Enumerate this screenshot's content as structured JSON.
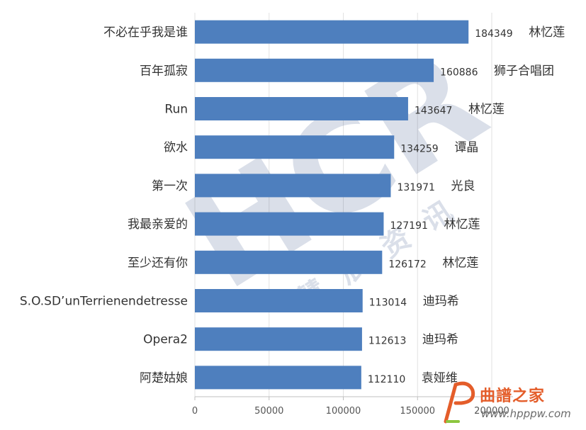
{
  "chart_data": {
    "type": "bar",
    "orientation": "horizontal",
    "categories": [
      "不必在乎我是谁",
      "百年孤寂",
      "Run",
      "欲水",
      "第一次",
      "我最亲爱的",
      "至少还有你",
      "S.O.SD’unTerrienendetresse",
      "Opera2",
      "阿楚姑娘"
    ],
    "values": [
      184349,
      160886,
      143647,
      134259,
      131971,
      127191,
      126172,
      113014,
      112613,
      112110
    ],
    "artists": [
      "林忆莲",
      "狮子合唱团",
      "林忆莲",
      "谭晶",
      "光良",
      "林忆莲",
      "林忆莲",
      "迪玛希",
      "迪玛希",
      "袁娅维"
    ],
    "xlim": [
      0,
      200000
    ],
    "xticks": [
      "0",
      "50000",
      "100000",
      "150000",
      "200000"
    ],
    "grid": true,
    "bar_color": "#4e7fbe"
  },
  "watermark": {
    "text": "慧辰资讯",
    "logo_letters": "HCR"
  },
  "logo": {
    "title": "曲譜之家",
    "url": "www.hpppw.com",
    "icon": "p-note-logo-icon"
  }
}
